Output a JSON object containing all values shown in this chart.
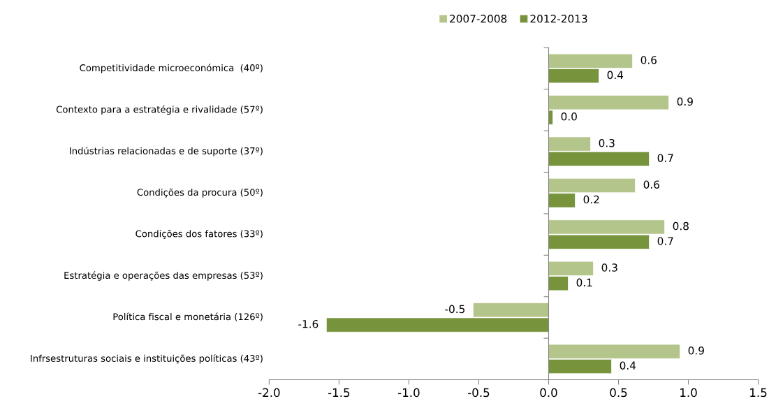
{
  "chart_data": {
    "type": "bar",
    "orientation": "horizontal",
    "categories": [
      "Competitividade microeconómica  (40º)",
      "Contexto para a estratégia e rivalidade (57º)",
      "Indústrias relacionadas e de suporte (37º)",
      "Condições da procura (50º)",
      "Condições dos fatores (33º)",
      "Estratégia e operações das empresas (53º)",
      "Política fiscal e monetária (126º)",
      "Infrsestruturas sociais e instituições políticas (43º)"
    ],
    "series": [
      {
        "name": "2007-2008",
        "color": "#b3c58a",
        "values": [
          0.6,
          0.86,
          0.3,
          0.62,
          0.83,
          0.32,
          -0.54,
          0.94
        ],
        "value_labels": [
          "0.6",
          "0.9",
          "0.3",
          "0.6",
          "0.8",
          "0.3",
          "-0.5",
          "0.9"
        ]
      },
      {
        "name": "2012-2013",
        "color": "#77933c",
        "values": [
          0.36,
          0.03,
          0.72,
          0.19,
          0.72,
          0.14,
          -1.59,
          0.45
        ],
        "value_labels": [
          "0.4",
          "0.0",
          "0.7",
          "0.2",
          "0.7",
          "0.1",
          "-1.6",
          "0.4"
        ]
      }
    ],
    "xlim": [
      -2.0,
      1.5
    ],
    "xticks": [
      "-2.0",
      "-1.5",
      "-1.0",
      "-0.5",
      "0.0",
      "0.5",
      "1.0",
      "1.5"
    ],
    "legend": "top",
    "grid": false
  }
}
